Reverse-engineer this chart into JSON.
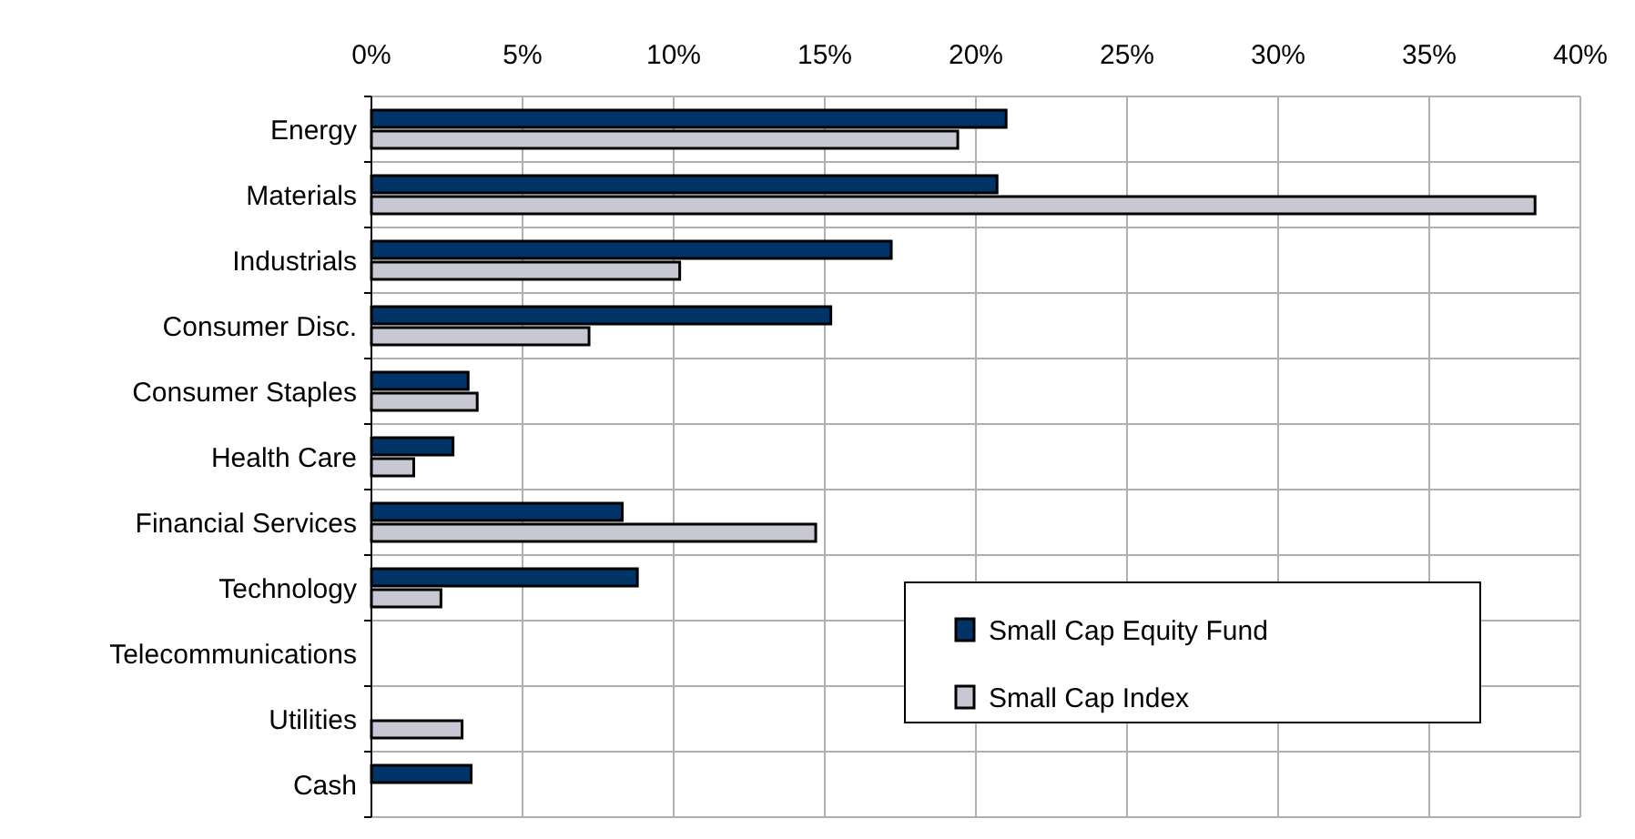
{
  "chart_data": {
    "type": "bar",
    "orientation": "horizontal",
    "categories": [
      "Energy",
      "Materials",
      "Industrials",
      "Consumer Disc.",
      "Consumer Staples",
      "Health Care",
      "Financial Services",
      "Technology",
      "Telecommunications",
      "Utilities",
      "Cash"
    ],
    "series": [
      {
        "name": "Small Cap Equity Fund",
        "color": "#003366",
        "values": [
          21.0,
          20.7,
          17.2,
          15.2,
          3.2,
          2.7,
          8.3,
          8.8,
          null,
          null,
          3.3
        ]
      },
      {
        "name": "Small Cap Index",
        "color": "#c8c8d4",
        "values": [
          19.4,
          38.5,
          10.2,
          7.2,
          3.5,
          1.4,
          14.7,
          2.3,
          null,
          3.0,
          null
        ]
      }
    ],
    "xlim": [
      0,
      40
    ],
    "xticks": [
      {
        "value": 0,
        "label": "0%"
      },
      {
        "value": 5,
        "label": "5%"
      },
      {
        "value": 10,
        "label": "10%"
      },
      {
        "value": 15,
        "label": "15%"
      },
      {
        "value": 20,
        "label": "20%"
      },
      {
        "value": 25,
        "label": "25%"
      },
      {
        "value": 30,
        "label": "30%"
      },
      {
        "value": 35,
        "label": "35%"
      },
      {
        "value": 40,
        "label": "40%"
      }
    ],
    "grid": true,
    "legend": "bottom right"
  }
}
